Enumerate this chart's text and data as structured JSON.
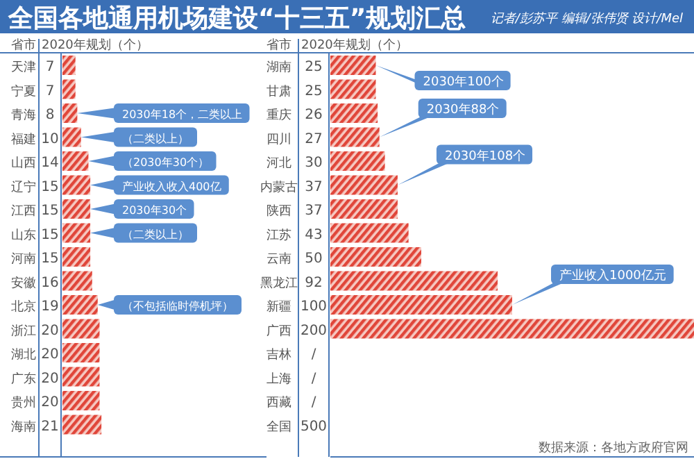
{
  "chart_data": [
    {
      "type": "bar",
      "orientation": "horizontal",
      "title": "全国各地通用机场建设“十三五”规划汇总",
      "ylabel": "省市",
      "xlabel": "2020年规划（个）",
      "xlim": [
        0,
        110
      ],
      "tick_labels": "y",
      "grid": false,
      "legend": false,
      "categories": [
        "天津",
        "宁夏",
        "青海",
        "福建",
        "山西",
        "辽宁",
        "江西",
        "山东",
        "河南",
        "安徽",
        "北京",
        "浙江",
        "湖北",
        "广东",
        "贵州",
        "海南"
      ],
      "series": [
        {
          "color": "#e0463a",
          "values": [
            7,
            7,
            8,
            10,
            14,
            15,
            15,
            15,
            15,
            16,
            19,
            20,
            20,
            20,
            20,
            21
          ],
          "value_labels": [
            "7",
            "7",
            "8",
            "10",
            "14",
            "15",
            "15",
            "15",
            "15",
            "16",
            "19",
            "20",
            "20",
            "20",
            "20",
            "21"
          ]
        }
      ],
      "annotations": [
        {
          "text": "2030年18个，二类以上",
          "x": 8,
          "y": "青海"
        },
        {
          "text": "（二类以上）",
          "x": 10,
          "y": "福建"
        },
        {
          "text": "（2030年30个）",
          "x": 14,
          "y": "山西"
        },
        {
          "text": "产业收入收入400亿",
          "x": 15,
          "y": "辽宁"
        },
        {
          "text": "2030年30个",
          "x": 15,
          "y": "江西"
        },
        {
          "text": "（二类以上）",
          "x": 15,
          "y": "山东"
        },
        {
          "text": "（不包括临时停机坪）",
          "x": 19,
          "y": "北京"
        }
      ]
    },
    {
      "type": "bar",
      "orientation": "horizontal",
      "subtitle": "记者/彭苏平  编辑/张伟贤  设计/Mel",
      "ylabel": "省市",
      "xlabel": "2020年规划（个）",
      "xlim": [
        0,
        200
      ],
      "tick_labels": "y",
      "grid": false,
      "legend": false,
      "categories": [
        "湖南",
        "甘肃",
        "重庆",
        "四川",
        "河北",
        "内蒙古",
        "陕西",
        "江苏",
        "云南",
        "黑龙江",
        "新疆",
        "广西",
        "吉林",
        "上海",
        "西藏",
        "全国"
      ],
      "series": [
        {
          "color": "#e0463a",
          "values": [
            25,
            25,
            26,
            27,
            30,
            37,
            37,
            43,
            50,
            92,
            100,
            200,
            null,
            null,
            null,
            null
          ],
          "value_labels": [
            "25",
            "25",
            "26",
            "27",
            "30",
            "37",
            "37",
            "43",
            "50",
            "92",
            "100",
            "200",
            "/",
            "/",
            "/",
            "500"
          ]
        }
      ],
      "annotations": [
        {
          "text": "2030年100个",
          "x": 25,
          "y": "湖南"
        },
        {
          "text": "2030年88个",
          "x": 27,
          "y": "四川"
        },
        {
          "text": "2030年108个",
          "x": 37,
          "y": "内蒙古"
        },
        {
          "text": "产业收入1000亿元",
          "x": 100,
          "y": "新疆"
        },
        "数据来源：各地方政府官网"
      ]
    }
  ]
}
